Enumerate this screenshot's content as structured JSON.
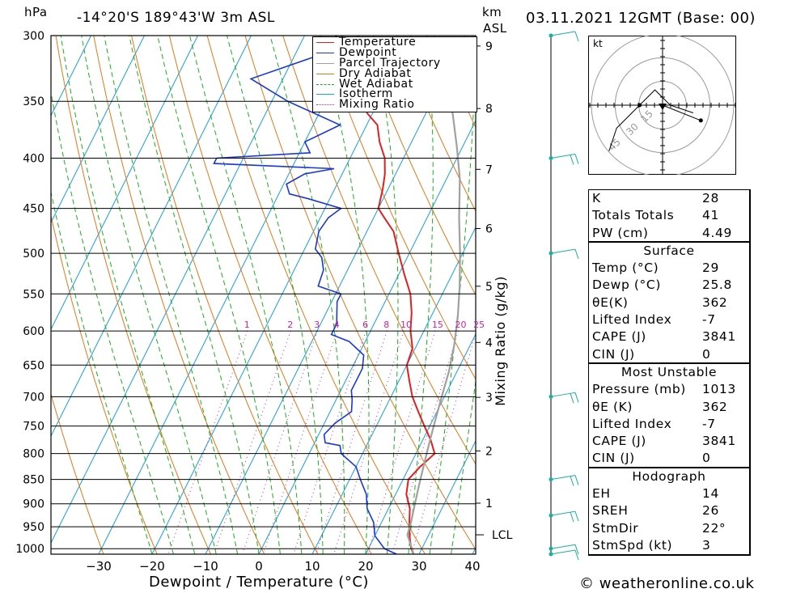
{
  "header": {
    "pressure_unit": "hPa",
    "location": "-14°20'S  189°43'W  3m  ASL",
    "km_unit": "km",
    "asl_label": "ASL",
    "datetime": "03.11.2021  12GMT  (Base: 00)"
  },
  "footer": {
    "credit": "© weatheronline.co.uk"
  },
  "colors": {
    "temperature": "#e02020",
    "dewpoint": "#1838d8",
    "parcel": "#a0a0a0",
    "dry_adiabat": "#e07818",
    "wet_adiabat": "#18b018",
    "isotherm": "#1a9ee0",
    "mixing_ratio": "#d020a0",
    "wind": "#18b0a0"
  },
  "chart_data": {
    "type": "line",
    "title": "",
    "xlabel": "Dewpoint / Temperature (°C)",
    "ylabel_right": "Mixing Ratio (g/kg)",
    "xlim": [
      -40,
      40
    ],
    "x_ticks": [
      -30,
      -20,
      -10,
      0,
      10,
      20,
      30,
      40
    ],
    "pressure_levels": [
      300,
      350,
      400,
      450,
      500,
      550,
      600,
      650,
      700,
      750,
      800,
      850,
      900,
      950,
      1000
    ],
    "km_ticks": [
      1,
      2,
      3,
      4,
      5,
      6,
      7,
      8,
      9
    ],
    "lcl_label": "LCL",
    "lcl_pressure": 968,
    "mixing_ratio_labels": [
      1,
      2,
      3,
      4,
      6,
      8,
      10,
      15,
      20,
      25
    ],
    "isotherms_step": 10,
    "legend": {
      "position": "top-right",
      "entries": [
        "Temperature",
        "Dewpoint",
        "Parcel Trajectory",
        "Dry Adiabat",
        "Wet Adiabat",
        "Isotherm",
        "Mixing Ratio"
      ]
    },
    "series": [
      {
        "name": "Temperature",
        "points": [
          [
            29,
            1013
          ],
          [
            28,
            1000
          ],
          [
            26.5,
            970
          ],
          [
            25,
            935
          ],
          [
            24,
            910
          ],
          [
            22,
            880
          ],
          [
            21,
            850
          ],
          [
            22,
            825
          ],
          [
            23.5,
            800
          ],
          [
            21.5,
            775
          ],
          [
            19,
            750
          ],
          [
            16.5,
            725
          ],
          [
            14,
            700
          ],
          [
            12,
            675
          ],
          [
            10,
            650
          ],
          [
            9.5,
            625
          ],
          [
            7.5,
            600
          ],
          [
            6,
            575
          ],
          [
            4,
            550
          ],
          [
            1,
            525
          ],
          [
            -2,
            500
          ],
          [
            -5,
            475
          ],
          [
            -8,
            460
          ],
          [
            -10,
            450
          ],
          [
            -11,
            430
          ],
          [
            -12,
            415
          ],
          [
            -13.5,
            400
          ],
          [
            -16,
            385
          ],
          [
            -18,
            370
          ],
          [
            -21,
            360
          ],
          [
            -24,
            345
          ],
          [
            -27,
            330
          ],
          [
            -31,
            310
          ],
          [
            -33,
            300
          ]
        ]
      },
      {
        "name": "Dewpoint",
        "points": [
          [
            25.8,
            1013
          ],
          [
            23,
            1000
          ],
          [
            20,
            970
          ],
          [
            18.5,
            940
          ],
          [
            16,
            910
          ],
          [
            14.5,
            880
          ],
          [
            12,
            850
          ],
          [
            10,
            825
          ],
          [
            6,
            800
          ],
          [
            5,
            785
          ],
          [
            2,
            780
          ],
          [
            1,
            765
          ],
          [
            2,
            745
          ],
          [
            4,
            725
          ],
          [
            3,
            705
          ],
          [
            2,
            690
          ],
          [
            2,
            670
          ],
          [
            2,
            655
          ],
          [
            1,
            635
          ],
          [
            -3,
            615
          ],
          [
            -7,
            605
          ],
          [
            -7,
            590
          ],
          [
            -8,
            575
          ],
          [
            -9,
            560
          ],
          [
            -9,
            550
          ],
          [
            -14,
            540
          ],
          [
            -14.5,
            520
          ],
          [
            -16,
            505
          ],
          [
            -18,
            495
          ],
          [
            -19,
            475
          ],
          [
            -18.5,
            460
          ],
          [
            -17,
            450
          ],
          [
            -24,
            440
          ],
          [
            -28,
            435
          ],
          [
            -29.5,
            425
          ],
          [
            -27,
            415
          ],
          [
            -22,
            410
          ],
          [
            -45,
            405
          ],
          [
            -45,
            400
          ],
          [
            -28,
            395
          ],
          [
            -30,
            385
          ],
          [
            -25,
            370
          ],
          [
            -37,
            350
          ],
          [
            -46,
            332
          ],
          [
            -36,
            315
          ],
          [
            -34,
            300
          ]
        ]
      },
      {
        "name": "Parcel Trajectory",
        "points": [
          [
            29,
            1013
          ],
          [
            27.5,
            990
          ],
          [
            26,
            968
          ],
          [
            25.5,
            940
          ],
          [
            24.5,
            900
          ],
          [
            23.5,
            860
          ],
          [
            22.5,
            820
          ],
          [
            21.5,
            780
          ],
          [
            20.5,
            740
          ],
          [
            19.5,
            700
          ],
          [
            18.5,
            660
          ],
          [
            17,
            620
          ],
          [
            15,
            580
          ],
          [
            12.5,
            540
          ],
          [
            9.5,
            500
          ],
          [
            6,
            460
          ],
          [
            2.5,
            420
          ],
          [
            -1,
            390
          ],
          [
            -5,
            360
          ],
          [
            -8,
            340
          ]
        ]
      }
    ]
  },
  "wind_barbs": [
    {
      "pressure": 1013,
      "barbs": 1
    },
    {
      "pressure": 1000,
      "barbs": 1
    },
    {
      "pressure": 925,
      "barbs": 2
    },
    {
      "pressure": 850,
      "barbs": 2
    },
    {
      "pressure": 700,
      "barbs": 2
    },
    {
      "pressure": 500,
      "barbs": 1
    },
    {
      "pressure": 400,
      "barbs": 2
    },
    {
      "pressure": 300,
      "barbs": 1
    }
  ],
  "hodograph": {
    "unit": "kt",
    "ring_labels": [
      "15",
      "30",
      "45"
    ],
    "trace": [
      [
        4,
        -1
      ],
      [
        1,
        0
      ],
      [
        -1,
        2
      ],
      [
        -3,
        0
      ],
      [
        -6,
        -3
      ],
      [
        -7,
        -6
      ]
    ],
    "storm_motion": [
      0,
      0
    ],
    "marker_end": [
      5,
      -2
    ]
  },
  "indices": [
    {
      "rows": [
        {
          "label": "K",
          "value": "28"
        },
        {
          "label": "Totals Totals",
          "value": "41"
        },
        {
          "label": "PW (cm)",
          "value": "4.49"
        }
      ]
    },
    {
      "title": "Surface",
      "rows": [
        {
          "label": "Temp (°C)",
          "value": "29"
        },
        {
          "label": "Dewp (°C)",
          "value": "25.8"
        },
        {
          "label": "θE(K)",
          "value": "362"
        },
        {
          "label": "Lifted Index",
          "value": "-7"
        },
        {
          "label": "CAPE (J)",
          "value": "3841"
        },
        {
          "label": "CIN (J)",
          "value": "0"
        }
      ]
    },
    {
      "title": "Most Unstable",
      "rows": [
        {
          "label": "Pressure (mb)",
          "value": "1013"
        },
        {
          "label": "θE (K)",
          "value": "362"
        },
        {
          "label": "Lifted Index",
          "value": "-7"
        },
        {
          "label": "CAPE (J)",
          "value": "3841"
        },
        {
          "label": "CIN (J)",
          "value": "0"
        }
      ]
    },
    {
      "title": "Hodograph",
      "rows": [
        {
          "label": "EH",
          "value": "14"
        },
        {
          "label": "SREH",
          "value": "26"
        },
        {
          "label": "StmDir",
          "value": "22°"
        },
        {
          "label": "StmSpd (kt)",
          "value": "3"
        }
      ]
    }
  ]
}
